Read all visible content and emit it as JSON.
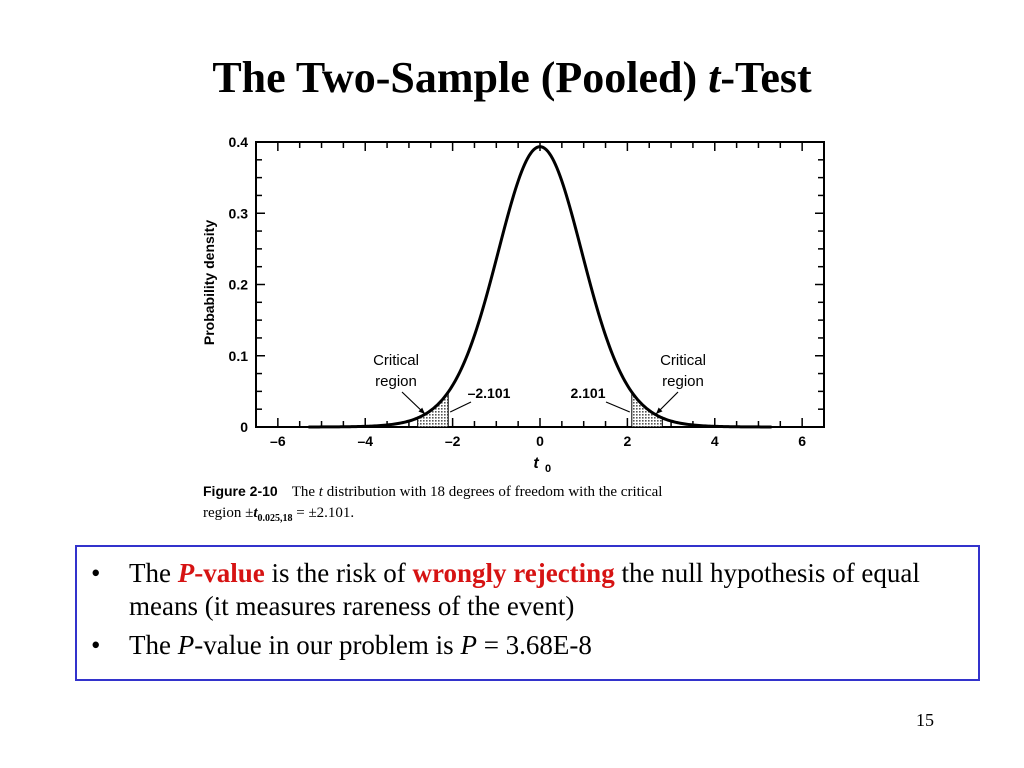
{
  "slide": {
    "title_main": "The Two-Sample (Pooled) ",
    "title_var": "t",
    "title_tail": "-Test",
    "page_number": "15"
  },
  "chart_data": {
    "type": "line",
    "title": "",
    "xlabel": "t",
    "xlabel_sub": "0",
    "ylabel": "Probability density",
    "xlim": [
      -6.5,
      6.5
    ],
    "ylim": [
      0,
      0.4
    ],
    "x_ticks": [
      -6,
      -4,
      -2,
      0,
      2,
      4,
      6
    ],
    "x_tick_labels": [
      "–6",
      "–4",
      "–2",
      "0",
      "2",
      "4",
      "6"
    ],
    "y_ticks": [
      0,
      0.1,
      0.2,
      0.3,
      0.4
    ],
    "y_tick_labels": [
      "0",
      "0.1",
      "0.2",
      "0.3",
      "0.4"
    ],
    "series": [
      {
        "distribution": "t",
        "degrees_of_freedom": 18,
        "x_range": [
          -5.3,
          5.3
        ]
      }
    ],
    "critical_value": 2.101,
    "shaded_regions": [
      {
        "from": -2.8,
        "to": -2.101
      },
      {
        "from": 2.101,
        "to": 2.8
      }
    ],
    "annotations": {
      "left_region": [
        "Critical",
        "region"
      ],
      "right_region": [
        "Critical",
        "region"
      ],
      "left_value": "–2.101",
      "right_value": "2.101"
    },
    "grid": false
  },
  "caption": {
    "figure_label": "Figure 2-10",
    "text_1": "The ",
    "t_var": "t",
    "text_2": " distribution with 18 degrees of freedom with the critical",
    "text_3": "region ±",
    "sub": "0.025,18",
    "text_4": " = ±2.101."
  },
  "bullets": {
    "b1_the": "The ",
    "b1_p": "P",
    "b1_dash_value": "-value",
    "b1_mid": " is the risk of ",
    "b1_wrongly": "wrongly rejecting",
    "b1_tail": " the null hypothesis of equal means (it measures rareness of the event)",
    "b2_the": "The ",
    "b2_p": "P",
    "b2_mid": "-value in our problem is ",
    "b2_p2": "P",
    "b2_eq": " = 3.68E-8",
    "bullet_char": "•"
  }
}
